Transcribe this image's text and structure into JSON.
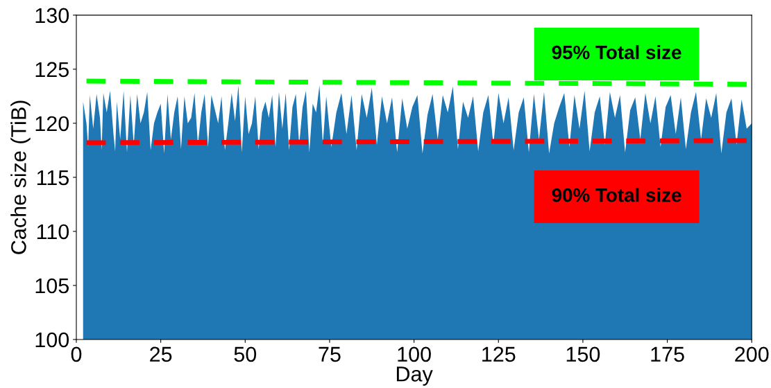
{
  "chart_data": {
    "type": "area",
    "xlabel": "Day",
    "ylabel": "Cache size (TiB)",
    "xlim": [
      0,
      200
    ],
    "xticks": [
      0,
      25,
      50,
      75,
      100,
      125,
      150,
      175,
      200
    ],
    "ylim": [
      100,
      130
    ],
    "yticks": [
      100,
      105,
      110,
      115,
      120,
      125,
      130
    ],
    "grid": false,
    "legend": false,
    "series": [
      {
        "color": "#1f77b4",
        "x": [
          2,
          3,
          3.5,
          4,
          5,
          6,
          7,
          7.5,
          8,
          9,
          10,
          11,
          11.5,
          12,
          13,
          14,
          15,
          16,
          17,
          18,
          19,
          20,
          21,
          22,
          23,
          24,
          25,
          26,
          27,
          28,
          29,
          30,
          31,
          32,
          33,
          34,
          35,
          36,
          37,
          38,
          39,
          40,
          42,
          43,
          44,
          45,
          46,
          47,
          48,
          49,
          50,
          51,
          52,
          53,
          54,
          55,
          56,
          57,
          58,
          59,
          60,
          61,
          62,
          63,
          64,
          65,
          66,
          67,
          68,
          69,
          70,
          71,
          72,
          73,
          74,
          75.5,
          77,
          78.5,
          80,
          81.5,
          83,
          84.5,
          86,
          87.5,
          89,
          90.5,
          92,
          93.5,
          95,
          96.5,
          98,
          99.5,
          101,
          102.5,
          104,
          105.5,
          107,
          108.5,
          110,
          111.5,
          113,
          114.5,
          116,
          117.5,
          119,
          120.5,
          122,
          123.5,
          125,
          126.5,
          128,
          129.5,
          131,
          132.5,
          134,
          135.5,
          137,
          138.5,
          140,
          141.5,
          143,
          144.5,
          146,
          147.5,
          149,
          150.5,
          152,
          153.5,
          155,
          156.5,
          158,
          159.5,
          161,
          162.5,
          164,
          165.5,
          167,
          168.5,
          170,
          171.5,
          173,
          174.5,
          176,
          177.5,
          179,
          180.5,
          182,
          183.5,
          185,
          186.5,
          188,
          189.5,
          191,
          192.5,
          194,
          195.5,
          197,
          198.5,
          200
        ],
        "values": [
          122,
          120,
          117.8,
          122.6,
          119.5,
          122.7,
          120.5,
          117.5,
          122.8,
          121,
          123,
          119,
          117.4,
          122,
          118.5,
          123,
          117.3,
          122.6,
          118,
          122.7,
          120,
          121,
          122.9,
          117.5,
          120,
          121,
          121.8,
          117.2,
          122.7,
          118.5,
          121,
          122.5,
          117.6,
          122.5,
          120,
          120.5,
          122.8,
          118,
          121,
          122.7,
          117.8,
          122.6,
          120,
          122.5,
          117.5,
          120,
          122.8,
          120.2,
          123.5,
          117.3,
          122.5,
          119,
          120,
          122.5,
          117.6,
          121,
          122,
          120.5,
          122.6,
          117.8,
          122.9,
          119.5,
          122.8,
          117.5,
          121.5,
          122.7,
          118,
          121.5,
          123,
          117.3,
          121.8,
          121,
          123.5,
          118,
          122.5,
          117.8,
          121,
          122.8,
          119,
          122.6,
          117.5,
          122.7,
          120.5,
          123.3,
          118,
          122.5,
          120,
          122.4,
          117.3,
          122.3,
          119.5,
          121.5,
          122.6,
          117.2,
          120.8,
          122.7,
          118.5,
          122.6,
          121,
          123.4,
          117.6,
          122,
          120.5,
          122.5,
          117.4,
          121,
          122.6,
          118,
          122.8,
          120,
          122.4,
          117.5,
          121,
          122.4,
          117.3,
          122.7,
          118.5,
          122.9,
          117.2,
          120,
          121.5,
          122.8,
          117.8,
          122.6,
          119.5,
          123,
          117.4,
          121,
          122.5,
          118,
          122.9,
          120.5,
          122.6,
          117.3,
          121.2,
          122.4,
          118.5,
          122.8,
          120,
          122.5,
          117.8,
          121.5,
          122.6,
          119,
          122.4,
          117.6,
          121,
          122.9,
          118.5,
          122.3,
          120.5,
          122.8,
          117.2,
          121,
          122.3,
          118,
          122.2,
          119.5,
          120
        ]
      },
      {
        "type": "line",
        "name": "95% Total size",
        "color": "#00ff00",
        "line_style": "dashed",
        "x": [
          3,
          200
        ],
        "values": [
          123.9,
          123.6
        ]
      },
      {
        "type": "line",
        "name": "90% Total size",
        "color": "#ff0000",
        "line_style": "dashed",
        "x": [
          3,
          200
        ],
        "values": [
          118.2,
          118.4
        ]
      }
    ]
  }
}
